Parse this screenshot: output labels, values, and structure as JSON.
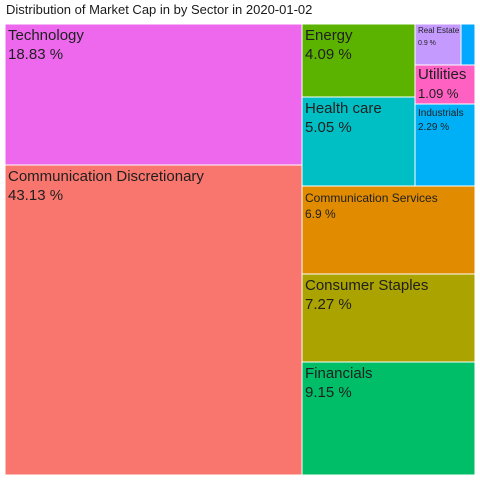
{
  "chart_data": {
    "type": "treemap",
    "title": "Distribution of Market Cap in by Sector in 2020-01-02",
    "unit": "%",
    "items": [
      {
        "label": "Communication Discretionary",
        "value": 43.13,
        "value_text": "43.13 %",
        "color": "#F8766D"
      },
      {
        "label": "Technology",
        "value": 18.83,
        "value_text": "18.83 %",
        "color": "#ED68ED"
      },
      {
        "label": "Financials",
        "value": 9.15,
        "value_text": "9.15 %",
        "color": "#00BE67"
      },
      {
        "label": "Consumer Staples",
        "value": 7.27,
        "value_text": "7.27 %",
        "color": "#ABA300"
      },
      {
        "label": "Communication Services",
        "value": 6.9,
        "value_text": "6.9 %",
        "color": "#E08B00"
      },
      {
        "label": "Health care",
        "value": 5.05,
        "value_text": "5.05 %",
        "color": "#00BFC4"
      },
      {
        "label": "Energy",
        "value": 4.09,
        "value_text": "4.09 %",
        "color": "#5BB300"
      },
      {
        "label": "Industrials",
        "value": 2.29,
        "value_text": "2.29 %",
        "color": "#00B0F6"
      },
      {
        "label": "Utilities",
        "value": 1.09,
        "value_text": "1.09 %",
        "color": "#FF61C3"
      },
      {
        "label": "Real Estate",
        "value": 0.9,
        "value_text": "0.9 %",
        "color": "#C49AFF"
      },
      {
        "label": "",
        "value": 0.3,
        "value_text": "",
        "color": "#00A9FF"
      }
    ]
  }
}
